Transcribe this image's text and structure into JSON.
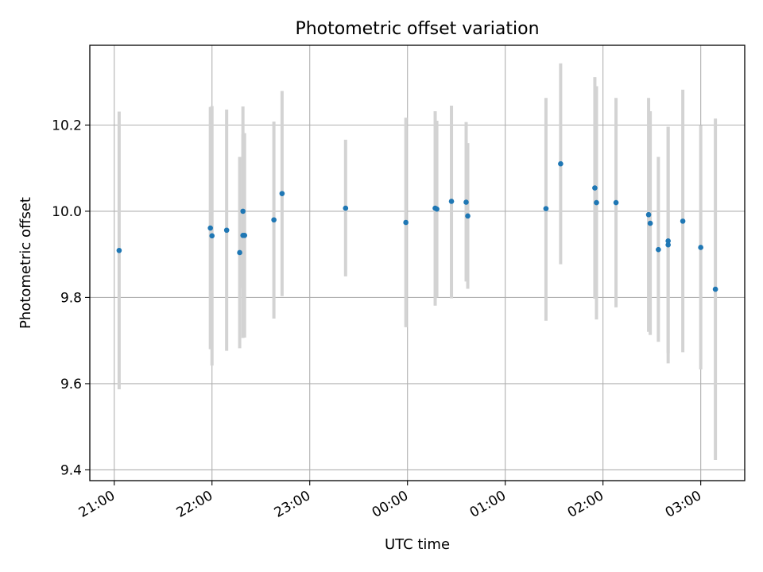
{
  "chart_data": {
    "type": "scatter",
    "title": "Photometric offset variation",
    "xlabel": "UTC time",
    "ylabel": "Photometric offset",
    "x_axis_type": "time",
    "x_range": [
      "20:45",
      "03:27"
    ],
    "ylim": [
      9.375,
      10.385
    ],
    "grid": true,
    "x_ticks": [
      "21:00",
      "22:00",
      "23:00",
      "00:00",
      "01:00",
      "02:00",
      "03:00"
    ],
    "y_ticks": [
      "9.4",
      "9.6",
      "9.8",
      "10.0",
      "10.2"
    ],
    "colors": {
      "marker": "#1f77b4",
      "errorbar": "#d3d3d3",
      "grid": "#b0b0b0"
    },
    "points": [
      {
        "x": "21:03",
        "y": 9.909,
        "ylow": 9.587,
        "yhigh": 10.231
      },
      {
        "x": "21:59",
        "y": 9.961,
        "ylow": 9.68,
        "yhigh": 10.242
      },
      {
        "x": "22:00",
        "y": 9.943,
        "ylow": 9.642,
        "yhigh": 10.244
      },
      {
        "x": "22:09",
        "y": 9.956,
        "ylow": 9.676,
        "yhigh": 10.236
      },
      {
        "x": "22:17",
        "y": 9.904,
        "ylow": 9.682,
        "yhigh": 10.126
      },
      {
        "x": "22:19",
        "y": 10.0,
        "ylow": 9.822,
        "yhigh": 10.178
      },
      {
        "x": "22:20",
        "y": 9.944,
        "ylow": 9.707,
        "yhigh": 10.181
      },
      {
        "x": "22:19",
        "y": 9.944,
        "ylow": 9.706,
        "yhigh": 10.243
      },
      {
        "x": "22:38",
        "y": 9.98,
        "ylow": 9.751,
        "yhigh": 10.208
      },
      {
        "x": "22:43",
        "y": 10.041,
        "ylow": 9.803,
        "yhigh": 10.279
      },
      {
        "x": "23:22",
        "y": 10.007,
        "ylow": 9.849,
        "yhigh": 10.166
      },
      {
        "x": "23:59",
        "y": 9.974,
        "ylow": 9.731,
        "yhigh": 10.217
      },
      {
        "x": "00:17",
        "y": 10.007,
        "ylow": 9.781,
        "yhigh": 10.232
      },
      {
        "x": "00:18",
        "y": 10.005,
        "ylow": 9.8,
        "yhigh": 10.21
      },
      {
        "x": "00:27",
        "y": 10.023,
        "ylow": 9.798,
        "yhigh": 10.245
      },
      {
        "x": "00:36",
        "y": 10.021,
        "ylow": 9.837,
        "yhigh": 10.207
      },
      {
        "x": "00:37",
        "y": 9.989,
        "ylow": 9.82,
        "yhigh": 10.158
      },
      {
        "x": "01:25",
        "y": 10.006,
        "ylow": 9.746,
        "yhigh": 10.263
      },
      {
        "x": "01:34",
        "y": 10.11,
        "ylow": 9.877,
        "yhigh": 10.343
      },
      {
        "x": "01:55",
        "y": 10.054,
        "ylow": 9.797,
        "yhigh": 10.311
      },
      {
        "x": "01:56",
        "y": 10.02,
        "ylow": 9.749,
        "yhigh": 10.29
      },
      {
        "x": "02:08",
        "y": 10.02,
        "ylow": 9.777,
        "yhigh": 10.263
      },
      {
        "x": "02:28",
        "y": 9.992,
        "ylow": 9.72,
        "yhigh": 10.263
      },
      {
        "x": "02:29",
        "y": 9.972,
        "ylow": 9.713,
        "yhigh": 10.232
      },
      {
        "x": "02:34",
        "y": 9.911,
        "ylow": 9.697,
        "yhigh": 10.126
      },
      {
        "x": "02:40",
        "y": 9.931,
        "ylow": 9.671,
        "yhigh": 10.196
      },
      {
        "x": "02:40",
        "y": 9.922,
        "ylow": 9.647,
        "yhigh": 10.196
      },
      {
        "x": "02:49",
        "y": 9.977,
        "ylow": 9.673,
        "yhigh": 10.282
      },
      {
        "x": "03:00",
        "y": 9.916,
        "ylow": 9.633,
        "yhigh": 10.199
      },
      {
        "x": "03:09",
        "y": 9.819,
        "ylow": 9.423,
        "yhigh": 10.215
      }
    ]
  }
}
